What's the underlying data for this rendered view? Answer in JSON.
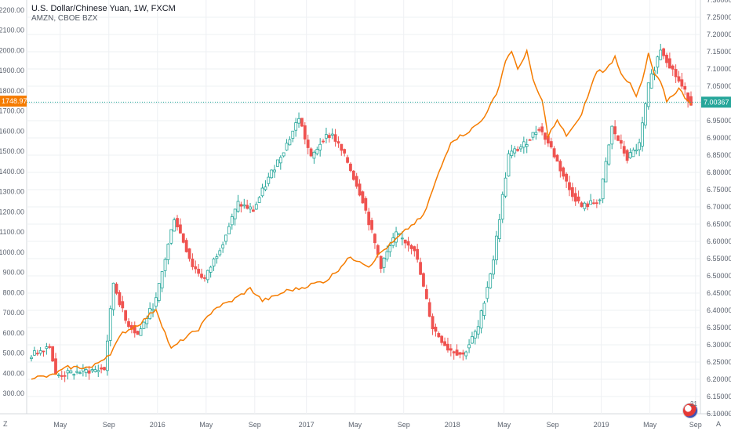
{
  "header": {
    "title": "U.S. Dollar/Chinese Yuan, 1W, FXCM",
    "subtitle": "AMZN, CBOE BZX"
  },
  "corner": {
    "left": "Z",
    "right": "A"
  },
  "event_badge": "21",
  "colors": {
    "up": "#26a69a",
    "down": "#ef5350",
    "overlay": "#f57c00",
    "grid": "#eef0f3",
    "axis_text": "#5d6470",
    "last_price_line": "#26a69a"
  },
  "chart_data": {
    "type": "candlestick",
    "title": "U.S. Dollar/Chinese Yuan, 1W, FXCM",
    "x_tick_labels": [
      "May",
      "Sep",
      "2016",
      "May",
      "Sep",
      "2017",
      "May",
      "Sep",
      "2018",
      "May",
      "Sep",
      "2019",
      "May",
      "Sep"
    ],
    "left_axis": {
      "series": "AMZN, CBOE BZX",
      "ylim": [
        200,
        2250
      ],
      "ticks": [
        "300.00",
        "400.00",
        "500.00",
        "600.00",
        "700.00",
        "800.00",
        "900.00",
        "1000.00",
        "1100.00",
        "1200.00",
        "1300.00",
        "1400.00",
        "1500.00",
        "1600.00",
        "1700.00",
        "1800.00",
        "1900.00",
        "2000.00",
        "2100.00",
        "2200.00"
      ],
      "last_value": "1748.97"
    },
    "right_axis": {
      "series": "U.S. Dollar/Chinese Yuan",
      "ylim": [
        6.1,
        7.3
      ],
      "ticks": [
        "6.10000",
        "6.15000",
        "6.20000",
        "6.25000",
        "6.30000",
        "6.35000",
        "6.40000",
        "6.45000",
        "6.50000",
        "6.55000",
        "6.60000",
        "6.65000",
        "6.70000",
        "6.75000",
        "6.80000",
        "6.85000",
        "6.90000",
        "6.95000",
        "7.00000",
        "7.05000",
        "7.10000",
        "7.15000",
        "7.20000",
        "7.25000",
        "7.30000"
      ],
      "last_value": "7.00367"
    },
    "series": [
      {
        "name": "U.S. Dollar/Chinese Yuan",
        "style": "candles",
        "close_anchors": [
          [
            0,
            6.27
          ],
          [
            6,
            6.3
          ],
          [
            8,
            6.21
          ],
          [
            14,
            6.22
          ],
          [
            24,
            6.23
          ],
          [
            27,
            6.48
          ],
          [
            31,
            6.37
          ],
          [
            35,
            6.33
          ],
          [
            41,
            6.43
          ],
          [
            47,
            6.67
          ],
          [
            53,
            6.53
          ],
          [
            57,
            6.49
          ],
          [
            63,
            6.6
          ],
          [
            68,
            6.71
          ],
          [
            73,
            6.69
          ],
          [
            79,
            6.8
          ],
          [
            85,
            6.9
          ],
          [
            88,
            6.96
          ],
          [
            92,
            6.84
          ],
          [
            96,
            6.9
          ],
          [
            99,
            6.91
          ],
          [
            104,
            6.83
          ],
          [
            109,
            6.72
          ],
          [
            115,
            6.53
          ],
          [
            120,
            6.62
          ],
          [
            126,
            6.58
          ],
          [
            132,
            6.35
          ],
          [
            137,
            6.29
          ],
          [
            142,
            6.27
          ],
          [
            147,
            6.35
          ],
          [
            152,
            6.55
          ],
          [
            157,
            6.85
          ],
          [
            162,
            6.88
          ],
          [
            167,
            6.93
          ],
          [
            171,
            6.87
          ],
          [
            177,
            6.75
          ],
          [
            181,
            6.7
          ],
          [
            187,
            6.72
          ],
          [
            191,
            6.93
          ],
          [
            196,
            6.84
          ],
          [
            200,
            6.88
          ],
          [
            203,
            7.05
          ],
          [
            207,
            7.16
          ],
          [
            212,
            7.08
          ],
          [
            217,
            7.0
          ]
        ]
      },
      {
        "name": "AMZN, CBOE BZX",
        "style": "line",
        "close_anchors": [
          [
            0,
            380
          ],
          [
            6,
            385
          ],
          [
            12,
            430
          ],
          [
            20,
            430
          ],
          [
            26,
            500
          ],
          [
            30,
            600
          ],
          [
            36,
            650
          ],
          [
            41,
            720
          ],
          [
            44,
            600
          ],
          [
            46,
            520
          ],
          [
            50,
            570
          ],
          [
            55,
            620
          ],
          [
            60,
            720
          ],
          [
            66,
            760
          ],
          [
            72,
            820
          ],
          [
            76,
            760
          ],
          [
            80,
            780
          ],
          [
            84,
            810
          ],
          [
            88,
            820
          ],
          [
            93,
            845
          ],
          [
            97,
            860
          ],
          [
            101,
            915
          ],
          [
            104,
            970
          ],
          [
            108,
            960
          ],
          [
            111,
            930
          ],
          [
            115,
            1000
          ],
          [
            119,
            1050
          ],
          [
            124,
            1120
          ],
          [
            129,
            1180
          ],
          [
            133,
            1350
          ],
          [
            138,
            1550
          ],
          [
            144,
            1600
          ],
          [
            148,
            1650
          ],
          [
            153,
            1780
          ],
          [
            156,
            1950
          ],
          [
            158,
            2000
          ],
          [
            160,
            1900
          ],
          [
            163,
            2000
          ],
          [
            165,
            1850
          ],
          [
            168,
            1750
          ],
          [
            170,
            1580
          ],
          [
            173,
            1650
          ],
          [
            176,
            1580
          ],
          [
            180,
            1650
          ],
          [
            183,
            1770
          ],
          [
            186,
            1900
          ],
          [
            189,
            1900
          ],
          [
            192,
            1970
          ],
          [
            194,
            1890
          ],
          [
            197,
            1830
          ],
          [
            199,
            1770
          ],
          [
            201,
            1850
          ],
          [
            203,
            1980
          ],
          [
            205,
            1880
          ],
          [
            207,
            1840
          ],
          [
            209,
            1750
          ],
          [
            211,
            1780
          ],
          [
            213,
            1810
          ],
          [
            215,
            1770
          ],
          [
            217,
            1740
          ]
        ]
      }
    ],
    "grid": true,
    "legend": "top-left"
  }
}
